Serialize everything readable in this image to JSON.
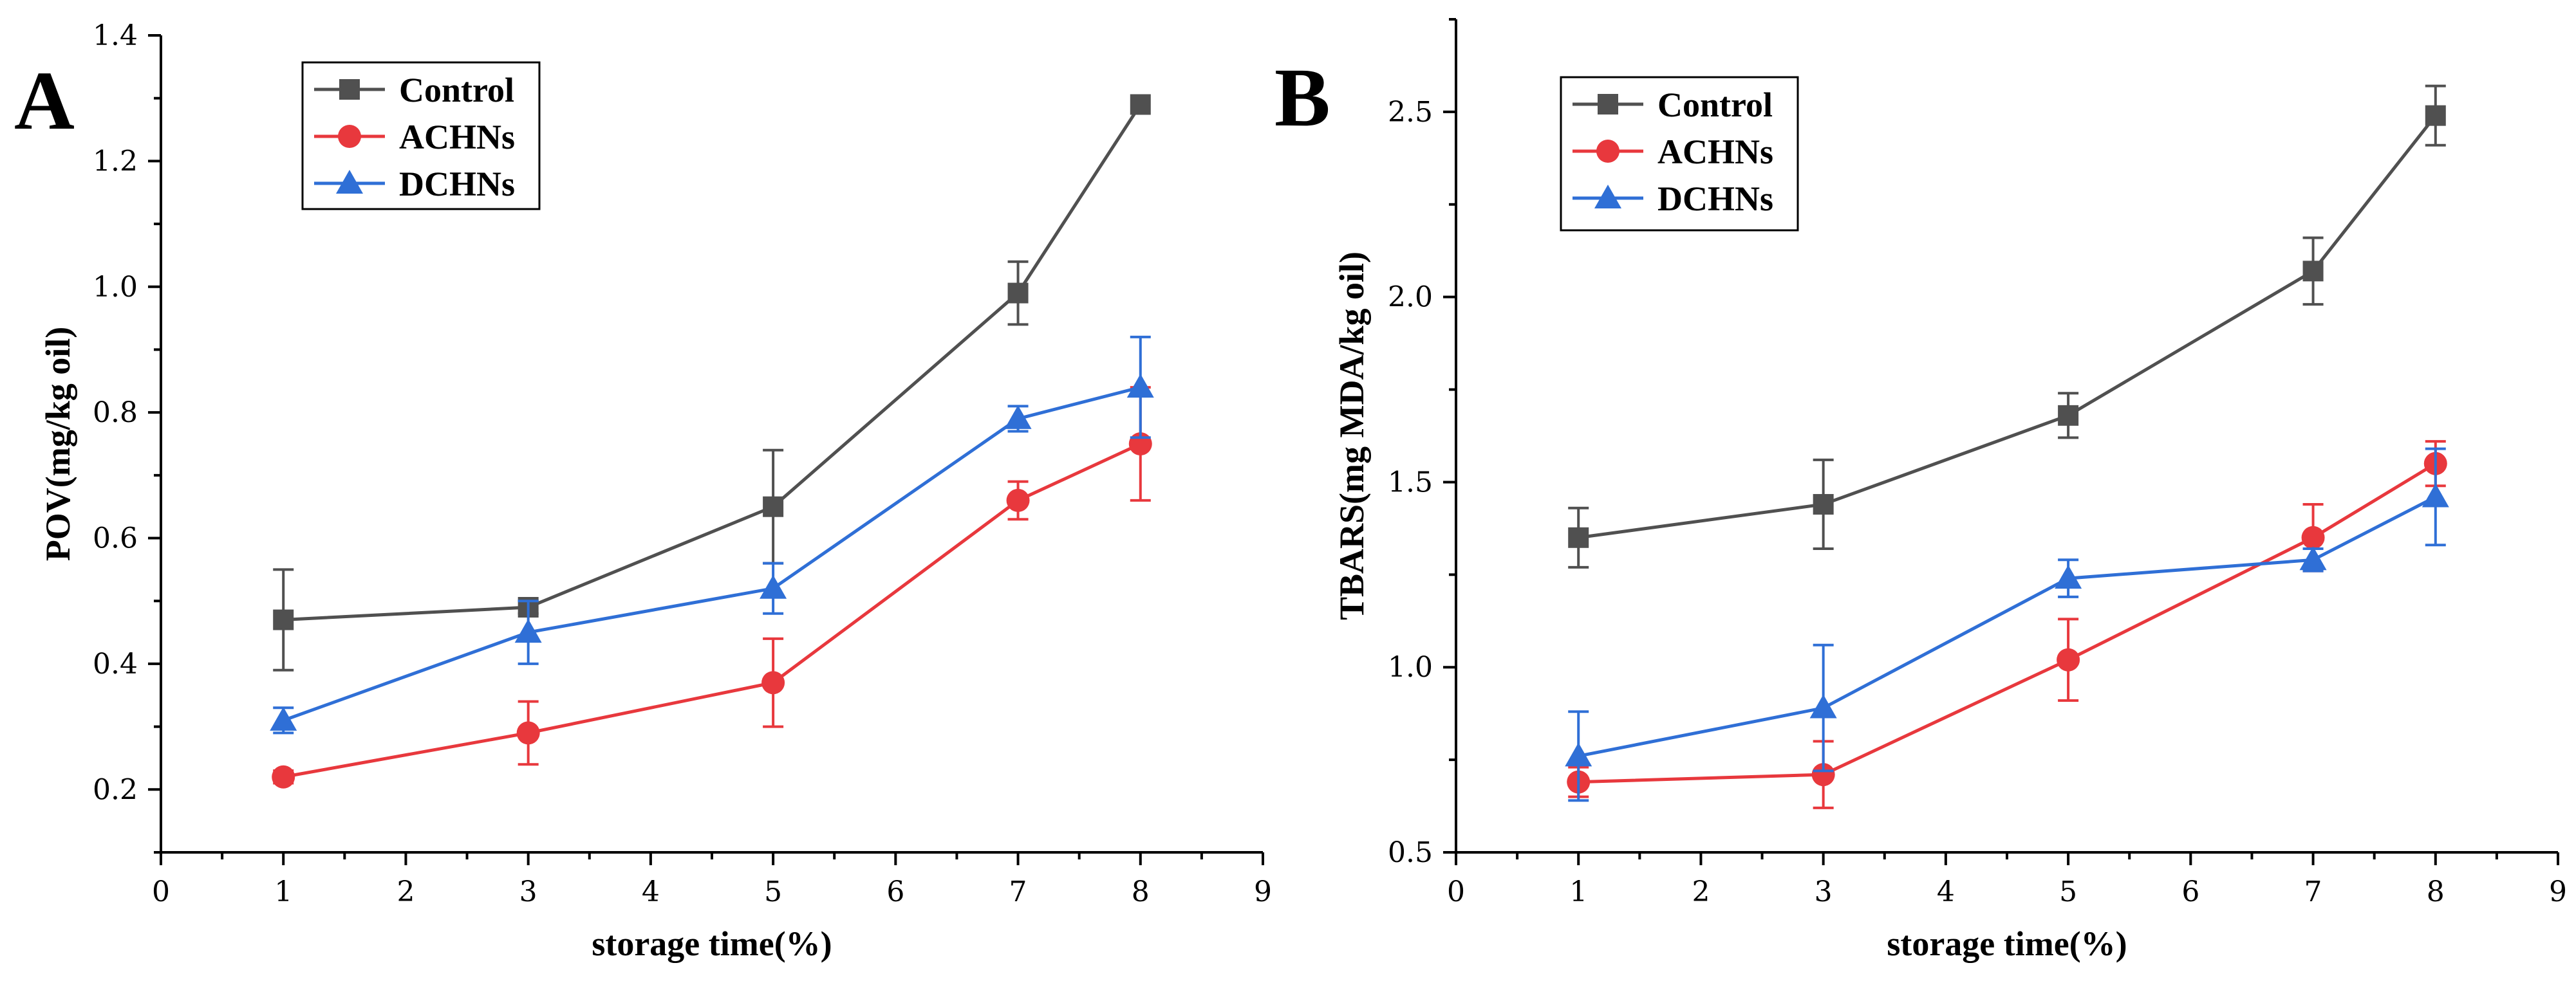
{
  "chart_data": [
    {
      "panel": "A",
      "type": "line",
      "title": "",
      "xlabel": "storage time(%)",
      "ylabel": "POV(mg/kg oil)",
      "xlim": [
        0,
        9
      ],
      "ylim": [
        0.1,
        1.4
      ],
      "xticks": [
        0,
        1,
        2,
        3,
        4,
        5,
        6,
        7,
        8,
        9
      ],
      "yticks": [
        0.2,
        0.4,
        0.6,
        0.8,
        1.0,
        1.2,
        1.4
      ],
      "ytick_labels": [
        "0.2",
        "0.4",
        "0.6",
        "0.8",
        "1.0",
        "1.2",
        "1.4"
      ],
      "grid": false,
      "legend_position": "top-left",
      "x": [
        1,
        3,
        5,
        7,
        8
      ],
      "series": [
        {
          "name": "Control",
          "color": "#505050",
          "marker": "square",
          "values": [
            0.47,
            0.49,
            0.65,
            0.99,
            1.29
          ],
          "errors": [
            0.08,
            0.01,
            0.09,
            0.05,
            0.0
          ]
        },
        {
          "name": "ACHNs",
          "color": "#e8383d",
          "marker": "circle",
          "values": [
            0.22,
            0.29,
            0.37,
            0.66,
            0.75
          ],
          "errors": [
            0.01,
            0.05,
            0.07,
            0.03,
            0.09
          ]
        },
        {
          "name": "DCHNs",
          "color": "#2f6fd6",
          "marker": "triangle",
          "values": [
            0.31,
            0.45,
            0.52,
            0.79,
            0.84
          ],
          "errors": [
            0.02,
            0.05,
            0.04,
            0.02,
            0.08
          ]
        }
      ]
    },
    {
      "panel": "B",
      "type": "line",
      "title": "",
      "xlabel": "storage time(%)",
      "ylabel": "TBARS(mg MDA/kg oil)",
      "xlim": [
        0,
        9
      ],
      "ylim": [
        0.5,
        2.75
      ],
      "xticks": [
        0,
        1,
        2,
        3,
        4,
        5,
        6,
        7,
        8,
        9
      ],
      "yticks": [
        0.5,
        1.0,
        1.5,
        2.0,
        2.5
      ],
      "ytick_labels": [
        "0.5",
        "1.0",
        "1.5",
        "2.0",
        "2.5"
      ],
      "grid": false,
      "legend_position": "top-left",
      "x": [
        1,
        3,
        5,
        7,
        8
      ],
      "series": [
        {
          "name": "Control",
          "color": "#505050",
          "marker": "square",
          "values": [
            1.35,
            1.44,
            1.68,
            2.07,
            2.49
          ],
          "errors": [
            0.08,
            0.12,
            0.06,
            0.09,
            0.08
          ]
        },
        {
          "name": "ACHNs",
          "color": "#e8383d",
          "marker": "circle",
          "values": [
            0.69,
            0.71,
            1.02,
            1.35,
            1.55
          ],
          "errors": [
            0.04,
            0.09,
            0.11,
            0.09,
            0.06
          ]
        },
        {
          "name": "DCHNs",
          "color": "#2f6fd6",
          "marker": "triangle",
          "values": [
            0.76,
            0.89,
            1.24,
            1.29,
            1.46
          ],
          "errors": [
            0.12,
            0.17,
            0.05,
            0.03,
            0.13
          ]
        }
      ]
    }
  ]
}
